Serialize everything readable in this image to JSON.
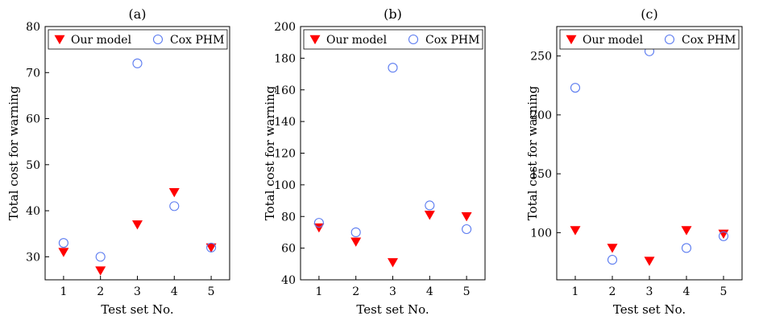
{
  "chart_data": [
    {
      "type": "scatter",
      "title": "(a)",
      "xlabel": "Test set No.",
      "ylabel": "Total cost for warning",
      "x": [
        1,
        2,
        3,
        4,
        5
      ],
      "xticks": [
        "1",
        "2",
        "3",
        "4",
        "5"
      ],
      "xlim": [
        0.5,
        5.5
      ],
      "ylim": [
        25,
        80
      ],
      "yticks": [
        30,
        40,
        50,
        60,
        70,
        80
      ],
      "ytick_labels": [
        "30",
        "40",
        "50",
        "60",
        "70",
        "80"
      ],
      "legend_position": "top",
      "series": [
        {
          "name": "Our model",
          "marker": "filled-down-triangle",
          "color": "#ff0000",
          "values": [
            31,
            27,
            37,
            44,
            32
          ]
        },
        {
          "name": "Cox PHM",
          "marker": "hollow-circle",
          "color": "#5b7bf0",
          "values": [
            33,
            30,
            72,
            41,
            32
          ]
        }
      ]
    },
    {
      "type": "scatter",
      "title": "(b)",
      "xlabel": "Test set No.",
      "ylabel": "Total cost for warning",
      "x": [
        1,
        2,
        3,
        4,
        5
      ],
      "xticks": [
        "1",
        "2",
        "3",
        "4",
        "5"
      ],
      "xlim": [
        0.5,
        5.5
      ],
      "ylim": [
        40,
        200
      ],
      "yticks": [
        40,
        60,
        80,
        100,
        120,
        140,
        160,
        180,
        200
      ],
      "ytick_labels": [
        "40",
        "60",
        "80",
        "100",
        "120",
        "140",
        "160",
        "180",
        "200"
      ],
      "legend_position": "top",
      "series": [
        {
          "name": "Our model",
          "marker": "filled-down-triangle",
          "color": "#ff0000",
          "values": [
            73,
            64,
            51,
            81,
            80
          ]
        },
        {
          "name": "Cox PHM",
          "marker": "hollow-circle",
          "color": "#5b7bf0",
          "values": [
            76,
            70,
            174,
            87,
            72
          ]
        }
      ]
    },
    {
      "type": "scatter",
      "title": "(c)",
      "xlabel": "Test set No.",
      "ylabel": "Total cost for warning",
      "x": [
        1,
        2,
        3,
        4,
        5
      ],
      "xticks": [
        "1",
        "2",
        "3",
        "4",
        "5"
      ],
      "xlim": [
        0.5,
        5.5
      ],
      "ylim": [
        60,
        275
      ],
      "yticks": [
        100,
        150,
        200,
        250
      ],
      "ytick_labels": [
        "100",
        "150",
        "200",
        "250"
      ],
      "legend_position": "top",
      "series": [
        {
          "name": "Our model",
          "marker": "filled-down-triangle",
          "color": "#ff0000",
          "values": [
            102,
            87,
            76,
            102,
            99
          ]
        },
        {
          "name": "Cox PHM",
          "marker": "hollow-circle",
          "color": "#5b7bf0",
          "values": [
            223,
            77,
            254,
            87,
            97
          ]
        }
      ]
    }
  ]
}
